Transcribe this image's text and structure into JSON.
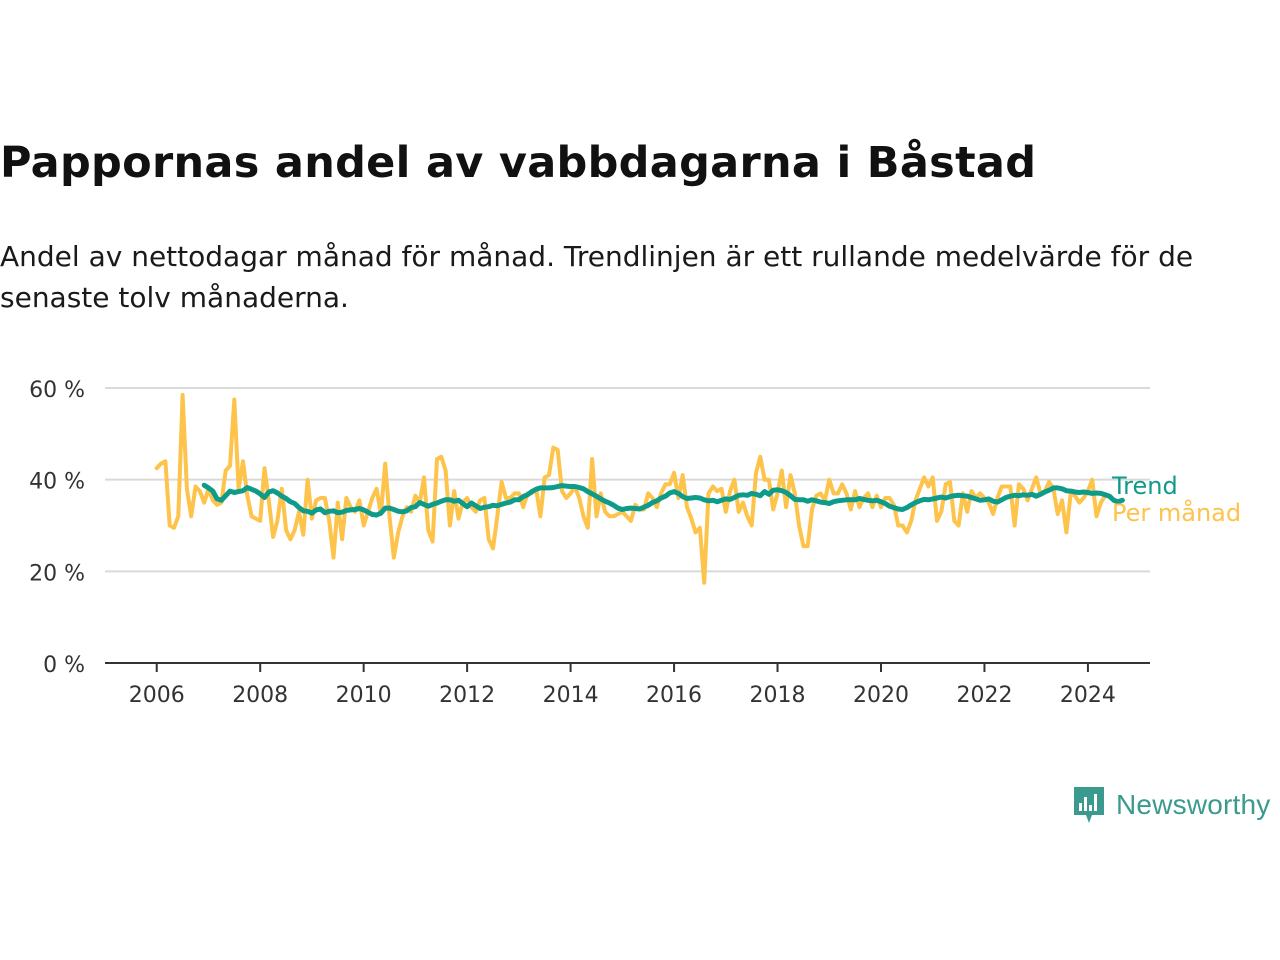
{
  "title": "Pappornas andel av vabbdagarna i Båstad",
  "subtitle": "Andel av nettodagar månad för månad. Trendlinjen är ett rullande medelvärde för de senaste tolv månaderna.",
  "logo": {
    "text": "Newsworthy",
    "icon": "newsworthy-chart-bubble-icon",
    "color": "#3a9a8e"
  },
  "chart_data": {
    "type": "line",
    "x_axis": {
      "ticks": [
        2006,
        2008,
        2010,
        2012,
        2014,
        2016,
        2018,
        2020,
        2022,
        2024
      ],
      "range": [
        2005.0,
        2025.2
      ]
    },
    "y_axis": {
      "ticks": [
        0,
        20,
        40,
        60
      ],
      "tick_labels": [
        "0 %",
        "20 %",
        "40 %",
        "60 %"
      ],
      "range": [
        0,
        60
      ]
    },
    "grid": "horizontal",
    "series": [
      {
        "name": "Per månad",
        "color": "#fdc34b",
        "start": 2006.0,
        "step": 0.0833333,
        "values": [
          42.5,
          43.5,
          44,
          30,
          29.5,
          32,
          58.5,
          38,
          32,
          38.5,
          37.5,
          35,
          38,
          35.5,
          34.5,
          35,
          42,
          43,
          57.5,
          38,
          44,
          36.5,
          32,
          31.5,
          31,
          42.5,
          35.5,
          27.5,
          31,
          38,
          29,
          27,
          29,
          33,
          28,
          40,
          31.5,
          35.5,
          36,
          36,
          31,
          23,
          35,
          27,
          36,
          34,
          33,
          35.5,
          30,
          33,
          36,
          38,
          32.5,
          43.5,
          32,
          23,
          28.5,
          32,
          34,
          33,
          36.5,
          35,
          40.5,
          29,
          26.5,
          44.5,
          45,
          42,
          30,
          37.5,
          31.5,
          35,
          36,
          34,
          33,
          35.5,
          36,
          27,
          25,
          32,
          39.5,
          36,
          36,
          37,
          37,
          34,
          37,
          37,
          38,
          32,
          40.5,
          41,
          47,
          46.5,
          37.5,
          36,
          37,
          38.5,
          36,
          32,
          29.5,
          44.5,
          32,
          37,
          33,
          32,
          32,
          32.5,
          33,
          32,
          31,
          34.5,
          33.5,
          33.5,
          37,
          36,
          34,
          37,
          39,
          39,
          41.5,
          36,
          41,
          34,
          31.5,
          28.5,
          29.5,
          17.5,
          37,
          38.5,
          37.5,
          38,
          33,
          37.5,
          40,
          33,
          35,
          32,
          30,
          41.5,
          45,
          40,
          40,
          33.5,
          37,
          42,
          34,
          41,
          37,
          30,
          25.5,
          25.5,
          33.5,
          36.5,
          37,
          35.5,
          40,
          37,
          37,
          39,
          37,
          33.5,
          37.5,
          34,
          36,
          37,
          34,
          36.5,
          34,
          36,
          36,
          34.5,
          30,
          30,
          28.5,
          31,
          35.5,
          38,
          40.5,
          38.5,
          40.5,
          31,
          33,
          39,
          39.5,
          31,
          30,
          37,
          33,
          37.5,
          36,
          37,
          36,
          35,
          32.5,
          36,
          38.5,
          38.5,
          38.5,
          30,
          39,
          38,
          35.5,
          38,
          40.5,
          37,
          37.5,
          39.5,
          38,
          32.5,
          35.5,
          28.5,
          37,
          36.5,
          35,
          36,
          37.5,
          40,
          32,
          35,
          36.5
        ]
      },
      {
        "name": "Trend",
        "color": "#0e9b8a",
        "start": 2006.9167,
        "step": 0.0833333,
        "values": [
          38.8,
          38.2,
          37.5,
          35.8,
          35.5,
          36.5,
          37.5,
          37.2,
          37.4,
          37.6,
          38.3,
          37.9,
          37.5,
          36.9,
          36.1,
          37.3,
          37.6,
          37.1,
          36.4,
          35.9,
          35.2,
          34.8,
          33.9,
          33.2,
          33.1,
          32.7,
          33.4,
          33.6,
          32.8,
          33.1,
          33.2,
          32.8,
          32.9,
          33.3,
          33.4,
          33.5,
          33.7,
          33.4,
          32.9,
          32.4,
          32.3,
          32.7,
          33.8,
          33.8,
          33.5,
          33.1,
          33.0,
          33.2,
          33.9,
          34.1,
          35.0,
          34.6,
          34.2,
          34.6,
          34.9,
          35.3,
          35.6,
          35.6,
          35.3,
          35.5,
          34.8,
          34.1,
          34.9,
          34.3,
          33.7,
          34.0,
          34.1,
          34.4,
          34.3,
          34.6,
          34.9,
          35.1,
          35.6,
          35.6,
          36.3,
          36.7,
          37.4,
          37.9,
          38.2,
          38.2,
          38.2,
          38.3,
          38.5,
          38.7,
          38.6,
          38.5,
          38.5,
          38.3,
          38.0,
          37.4,
          36.9,
          36.4,
          35.8,
          35.3,
          34.9,
          34.4,
          33.8,
          33.5,
          33.7,
          33.8,
          33.7,
          33.6,
          34.0,
          34.4,
          35.0,
          35.4,
          36.0,
          36.4,
          37.1,
          37.4,
          37.0,
          36.3,
          35.9,
          36.0,
          36.1,
          36.0,
          35.6,
          35.4,
          35.5,
          35.2,
          35.5,
          35.8,
          35.7,
          36.1,
          36.6,
          36.7,
          36.6,
          37.0,
          36.8,
          36.5,
          37.4,
          36.8,
          37.7,
          37.8,
          37.6,
          37.2,
          36.5,
          35.7,
          35.6,
          35.6,
          35.3,
          35.6,
          35.4,
          35.1,
          35.0,
          34.8,
          35.2,
          35.4,
          35.5,
          35.6,
          35.6,
          35.6,
          35.9,
          35.7,
          35.5,
          35.4,
          35.5,
          35.2,
          34.8,
          34.2,
          33.9,
          33.6,
          33.5,
          33.9,
          34.5,
          35.0,
          35.4,
          35.7,
          35.6,
          35.8,
          36.0,
          36.2,
          36.0,
          36.3,
          36.5,
          36.6,
          36.5,
          36.4,
          36.1,
          35.8,
          35.5,
          35.6,
          35.8,
          35.3,
          35.1,
          35.6,
          36.1,
          36.4,
          36.6,
          36.5,
          36.7,
          36.6,
          36.8,
          36.4,
          36.8,
          37.3,
          37.7,
          38.2,
          38.2,
          38.0,
          37.6,
          37.5,
          37.3,
          37.2,
          37.3,
          37.2,
          37.0,
          37.1,
          37.0,
          36.7,
          36.4,
          35.5,
          35.2,
          35.5
        ]
      }
    ]
  }
}
